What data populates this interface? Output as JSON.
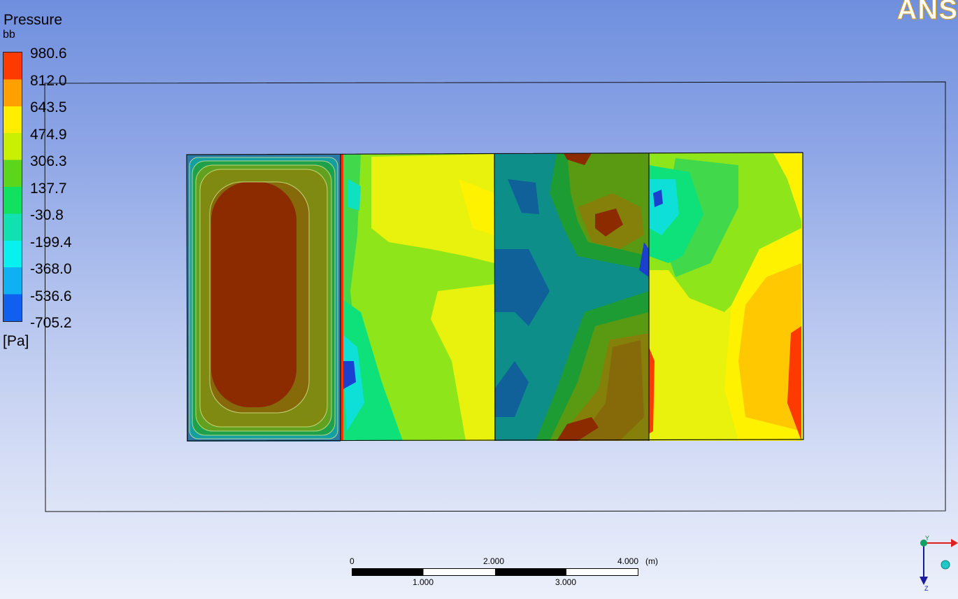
{
  "legend": {
    "title": "Pressure",
    "subtitle": "bb",
    "unit": "[Pa]",
    "labels": [
      "980.6",
      "812.0",
      "643.5",
      "474.9",
      "306.3",
      "137.7",
      "-30.8",
      "-199.4",
      "-368.0",
      "-536.6",
      "-705.2"
    ],
    "colors": [
      "#ff3a00",
      "#ffa000",
      "#ffee00",
      "#c8f000",
      "#5cd61c",
      "#12e060",
      "#11e0b0",
      "#08f0f0",
      "#10b0f4",
      "#1060f0"
    ]
  },
  "logo": {
    "text": "ANS"
  },
  "scale": {
    "top_labels": [
      "0",
      "2.000",
      "4.000"
    ],
    "bottom_labels": [
      "1.000",
      "3.000"
    ],
    "unit": "(m)"
  },
  "axes": {
    "y_label": "Y",
    "z_label": "Z"
  }
}
